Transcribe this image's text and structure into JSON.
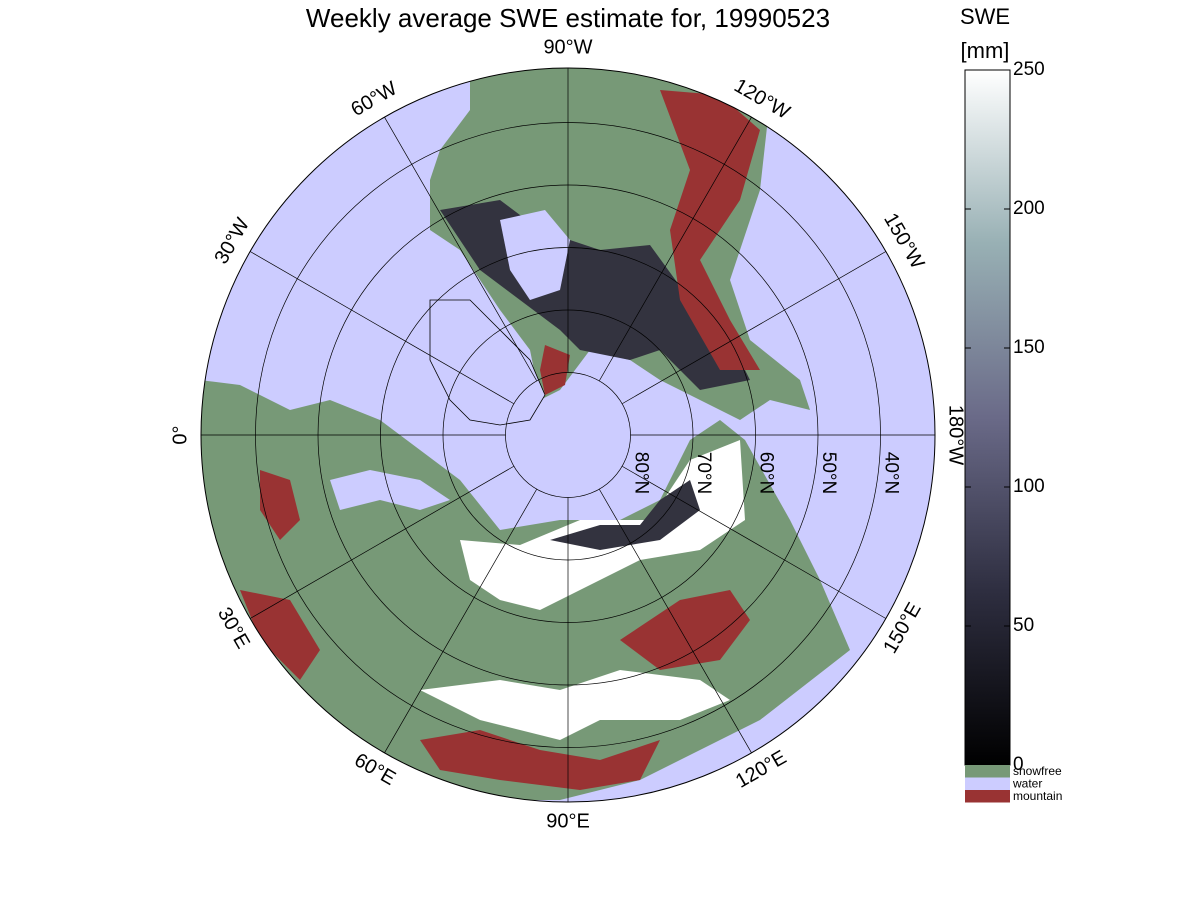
{
  "chart_data": {
    "type": "map",
    "title": "Weekly average SWE estimate for, 19990523",
    "meridian_labels": [
      "180°W",
      "150°W",
      "120°W",
      "90°W",
      "60°W",
      "30°W",
      "0°",
      "30°E",
      "60°E",
      "90°E",
      "120°E",
      "150°E"
    ],
    "latitude_labels": [
      "80°N",
      "70°N",
      "60°N",
      "50°N",
      "40°N"
    ],
    "water_color": "#ccccff",
    "colorbar": {
      "title": "SWE",
      "unit": "[mm]",
      "lim": [
        0,
        250
      ],
      "ticks": [
        0,
        50,
        100,
        150,
        200,
        250
      ]
    },
    "legend": [
      {
        "name": "snowfree",
        "color": "#779977"
      },
      {
        "name": "water",
        "color": "#ccccff"
      },
      {
        "name": "mountain",
        "color": "#993333"
      }
    ]
  }
}
